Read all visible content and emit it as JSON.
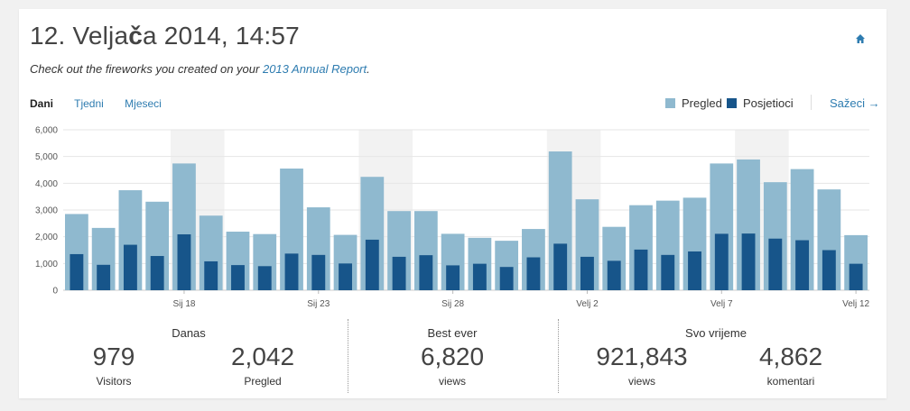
{
  "header": {
    "title_pre": "12. Velja",
    "title_bold": "č",
    "title_post": "a 2014, 14:57",
    "subtitle_pre": "Check out the fireworks you created on your ",
    "subtitle_link": "2013 Annual Report",
    "subtitle_post": ".",
    "home_icon": "home-icon"
  },
  "tabs": [
    "Dani",
    "Tjedni",
    "Mjeseci"
  ],
  "legend": {
    "views_label": "Pregled",
    "visitors_label": "Posjetioci",
    "summary_link": "Sažeci"
  },
  "colors": {
    "views": "#8fb9cf",
    "visitors": "#17558a",
    "accent": "#2e7cb0",
    "weekend": "#f2f2f2"
  },
  "chart_data": {
    "type": "bar",
    "ylim": [
      0,
      6000
    ],
    "yticks": [
      "0",
      "1,000",
      "2,000",
      "3,000",
      "4,000",
      "5,000",
      "6,000"
    ],
    "x_tick_labels": [
      {
        "index": 4,
        "label": "Sij 18"
      },
      {
        "index": 9,
        "label": "Sij 23"
      },
      {
        "index": 14,
        "label": "Sij 28"
      },
      {
        "index": 19,
        "label": "Velj 2"
      },
      {
        "index": 24,
        "label": "Velj 7"
      },
      {
        "index": 29,
        "label": "Velj 12"
      }
    ],
    "weekend_pairs": [
      4,
      11,
      18,
      25
    ],
    "series": [
      {
        "name": "Pregled",
        "values": [
          2850,
          2330,
          3740,
          3310,
          4740,
          2790,
          2190,
          2100,
          4550,
          3100,
          2070,
          4240,
          2960,
          2960,
          2110,
          1960,
          1850,
          2290,
          5190,
          3400,
          2370,
          3180,
          3350,
          3460,
          4740,
          4890,
          4040,
          4530,
          3770,
          2060
        ]
      },
      {
        "name": "Posjetioci",
        "values": [
          1350,
          950,
          1700,
          1280,
          2090,
          1080,
          940,
          900,
          1370,
          1320,
          1000,
          1890,
          1250,
          1310,
          930,
          990,
          870,
          1230,
          1740,
          1250,
          1100,
          1520,
          1320,
          1450,
          2110,
          2120,
          1930,
          1870,
          1500,
          990
        ]
      }
    ]
  },
  "stats": {
    "today": {
      "title": "Danas",
      "visitors": "979",
      "visitors_label": "Visitors",
      "views": "2,042",
      "views_label": "Pregled"
    },
    "best": {
      "title": "Best ever",
      "views": "6,820",
      "views_label": "views"
    },
    "all": {
      "title": "Svo vrijeme",
      "views": "921,843",
      "views_label": "views",
      "comments": "4,862",
      "comments_label": "komentari"
    }
  }
}
